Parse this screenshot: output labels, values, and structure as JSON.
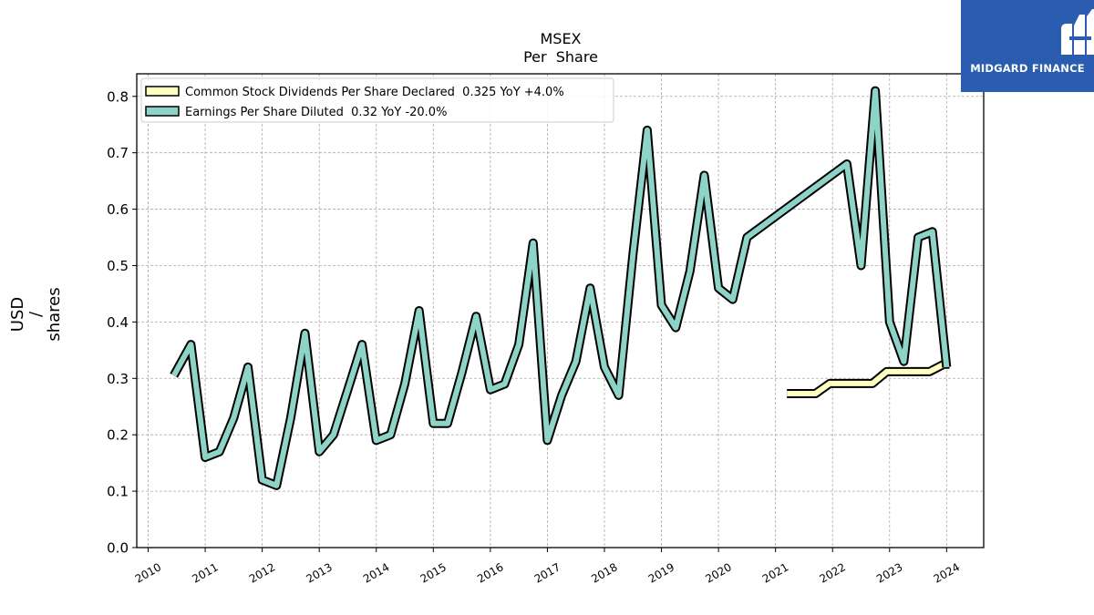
{
  "logo": {
    "text": "MIDGARD FINANCE",
    "icon": "midgard-m-icon",
    "background": "#2a5db0"
  },
  "chart_data": {
    "type": "line",
    "title": "MSEX",
    "subtitle": "Per  Share",
    "ylabel": [
      "USD",
      "/",
      "shares"
    ],
    "xlabel": "",
    "ylim": [
      0.0,
      0.84
    ],
    "xlim": [
      2009.8,
      2024.65
    ],
    "yticks": [
      0.0,
      0.1,
      0.2,
      0.3,
      0.4,
      0.5,
      0.6,
      0.7,
      0.8
    ],
    "ytick_labels": [
      "0.0",
      "0.1",
      "0.2",
      "0.3",
      "0.4",
      "0.5",
      "0.6",
      "0.7",
      "0.8"
    ],
    "xticks": [
      2010,
      2011,
      2012,
      2013,
      2014,
      2015,
      2016,
      2017,
      2018,
      2019,
      2020,
      2021,
      2022,
      2023,
      2024
    ],
    "xtick_labels": [
      "2010",
      "2011",
      "2012",
      "2013",
      "2014",
      "2015",
      "2016",
      "2017",
      "2018",
      "2019",
      "2020",
      "2021",
      "2022",
      "2023",
      "2024"
    ],
    "grid": true,
    "legend_position": "top-left",
    "series": [
      {
        "name": "Common Stock Dividends Per Share Declared  0.325 YoY +4.0%",
        "color": "#ffffbf",
        "x": [
          2021.2,
          2021.45,
          2021.7,
          2021.95,
          2022.2,
          2022.45,
          2022.7,
          2022.95,
          2023.2,
          2023.45,
          2023.7,
          2023.95,
          2024.05
        ],
        "values": [
          0.273,
          0.273,
          0.273,
          0.291,
          0.291,
          0.291,
          0.291,
          0.312,
          0.312,
          0.312,
          0.312,
          0.325,
          0.325
        ]
      },
      {
        "name": "Earnings Per Share Diluted  0.32 YoY -20.0%",
        "color": "#8dd3c7",
        "x": [
          2010.45,
          2010.75,
          2011.0,
          2011.25,
          2011.5,
          2011.75,
          2012.0,
          2012.25,
          2012.5,
          2012.75,
          2013.0,
          2013.25,
          2013.5,
          2013.75,
          2014.0,
          2014.25,
          2014.5,
          2014.75,
          2015.0,
          2015.25,
          2015.5,
          2015.75,
          2016.0,
          2016.25,
          2016.5,
          2016.75,
          2017.0,
          2017.25,
          2017.5,
          2017.75,
          2018.0,
          2018.25,
          2018.5,
          2018.75,
          2019.0,
          2019.25,
          2019.5,
          2019.75,
          2020.0,
          2020.25,
          2020.5,
          2022.25,
          2022.5,
          2022.75,
          2023.0,
          2023.25,
          2023.5,
          2023.75,
          2024.0
        ],
        "values": [
          0.305,
          0.36,
          0.16,
          0.17,
          0.23,
          0.32,
          0.12,
          0.11,
          0.23,
          0.38,
          0.17,
          0.2,
          0.28,
          0.36,
          0.19,
          0.2,
          0.29,
          0.42,
          0.22,
          0.22,
          0.31,
          0.41,
          0.28,
          0.29,
          0.36,
          0.54,
          0.19,
          0.27,
          0.33,
          0.46,
          0.32,
          0.27,
          0.52,
          0.74,
          0.43,
          0.39,
          0.49,
          0.66,
          0.46,
          0.44,
          0.55,
          0.68,
          0.5,
          0.81,
          0.4,
          0.33,
          0.55,
          0.56,
          0.32
        ]
      }
    ]
  }
}
